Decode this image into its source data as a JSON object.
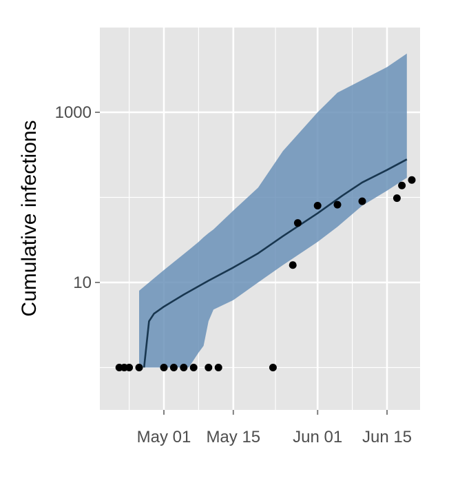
{
  "chart_data": {
    "type": "line",
    "title": "",
    "xlabel": "",
    "ylabel": "Cumulative infections",
    "y_scale": "log10",
    "ylim": [
      1.0,
      6000
    ],
    "xlim": [
      "2009-04-20",
      "2009-06-24"
    ],
    "grid": true,
    "legend": "none",
    "x_ticks": [
      {
        "value": "2009-05-01",
        "label": "May 01"
      },
      {
        "value": "2009-05-15",
        "label": "May 15"
      },
      {
        "value": "2009-06-01",
        "label": "Jun 01"
      },
      {
        "value": "2009-06-15",
        "label": "Jun 15"
      }
    ],
    "y_ticks": [
      {
        "value": 10,
        "label": "10"
      },
      {
        "value": 1000,
        "label": "1000"
      }
    ],
    "y_minor_ticks": [
      1,
      100
    ],
    "colors": {
      "panel_background": "#e5e5e5",
      "grid": "#ffffff",
      "band_fill": "#6b92b8",
      "line": "#18364f",
      "points": "#000000"
    },
    "series": [
      {
        "kind": "band",
        "points": [
          {
            "x": "2009-04-26",
            "low": 1.0,
            "high": 8.0
          },
          {
            "x": "2009-05-01",
            "low": 1.0,
            "high": 14.0
          },
          {
            "x": "2009-05-06",
            "low": 1.0,
            "high": 24.0
          },
          {
            "x": "2009-05-08",
            "low": 1.5,
            "high": 30.0
          },
          {
            "x": "2009-05-09",
            "low": 1.8,
            "high": 34.0
          },
          {
            "x": "2009-05-10",
            "low": 3.5,
            "high": 38.0
          },
          {
            "x": "2009-05-11",
            "low": 4.8,
            "high": 42.0
          },
          {
            "x": "2009-05-15",
            "low": 6.2,
            "high": 70.0
          },
          {
            "x": "2009-05-20",
            "low": 10.0,
            "high": 130.0
          },
          {
            "x": "2009-05-25",
            "low": 16.0,
            "high": 350.0
          },
          {
            "x": "2009-06-01",
            "low": 30.0,
            "high": 1000.0
          },
          {
            "x": "2009-06-05",
            "low": 45.0,
            "high": 1700.0
          },
          {
            "x": "2009-06-10",
            "low": 80.0,
            "high": 2400.0
          },
          {
            "x": "2009-06-15",
            "low": 120.0,
            "high": 3400.0
          },
          {
            "x": "2009-06-19",
            "low": 170.0,
            "high": 4900.0
          }
        ]
      },
      {
        "kind": "line",
        "points": [
          {
            "x": "2009-04-27",
            "y": 1.0
          },
          {
            "x": "2009-04-28",
            "y": 3.5
          },
          {
            "x": "2009-04-29",
            "y": 4.3
          },
          {
            "x": "2009-05-01",
            "y": 5.2
          },
          {
            "x": "2009-05-05",
            "y": 7.2
          },
          {
            "x": "2009-05-10",
            "y": 10.5
          },
          {
            "x": "2009-05-15",
            "y": 15.0
          },
          {
            "x": "2009-05-20",
            "y": 22.0
          },
          {
            "x": "2009-05-25",
            "y": 35.0
          },
          {
            "x": "2009-06-01",
            "y": 65.0
          },
          {
            "x": "2009-06-06",
            "y": 105.0
          },
          {
            "x": "2009-06-10",
            "y": 150.0
          },
          {
            "x": "2009-06-15",
            "y": 210.0
          },
          {
            "x": "2009-06-19",
            "y": 280.0
          }
        ]
      },
      {
        "kind": "scatter",
        "points": [
          {
            "x": "2009-04-22",
            "y": 1.0
          },
          {
            "x": "2009-04-23",
            "y": 1.0
          },
          {
            "x": "2009-04-24",
            "y": 1.0
          },
          {
            "x": "2009-04-26",
            "y": 1.0
          },
          {
            "x": "2009-05-01",
            "y": 1.0
          },
          {
            "x": "2009-05-03",
            "y": 1.0
          },
          {
            "x": "2009-05-05",
            "y": 1.0
          },
          {
            "x": "2009-05-07",
            "y": 1.0
          },
          {
            "x": "2009-05-10",
            "y": 1.0
          },
          {
            "x": "2009-05-12",
            "y": 1.0
          },
          {
            "x": "2009-05-23",
            "y": 1.0
          },
          {
            "x": "2009-05-27",
            "y": 16.0
          },
          {
            "x": "2009-05-28",
            "y": 50.0
          },
          {
            "x": "2009-06-01",
            "y": 80.0
          },
          {
            "x": "2009-06-05",
            "y": 82.0
          },
          {
            "x": "2009-06-10",
            "y": 90.0
          },
          {
            "x": "2009-06-17",
            "y": 98.0
          },
          {
            "x": "2009-06-18",
            "y": 138.0
          },
          {
            "x": "2009-06-20",
            "y": 160.0
          }
        ]
      }
    ]
  }
}
